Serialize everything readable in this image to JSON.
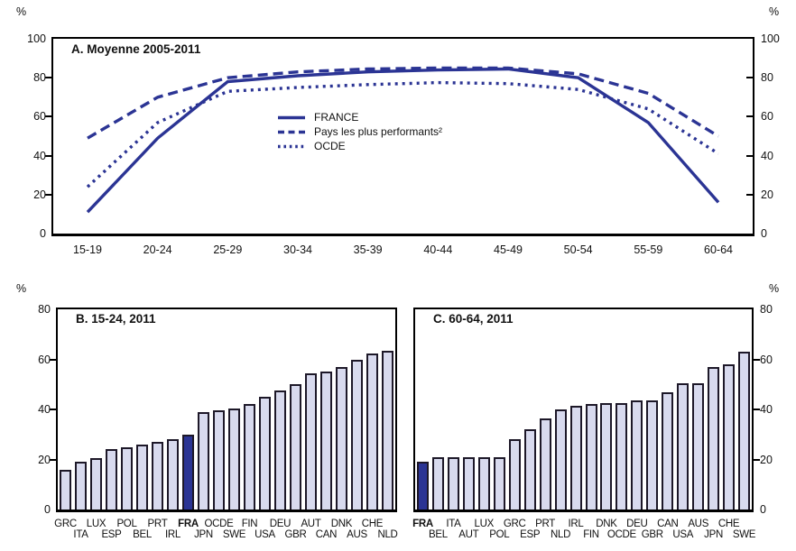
{
  "colors": {
    "accent": "#2b3494",
    "bar_fill": "#d8daee",
    "bar_border": "#1d1828",
    "axis": "#000000",
    "background": "#ffffff"
  },
  "chart_data": [
    {
      "type": "line",
      "title": "A. Moyenne 2005-2011",
      "unit": "%",
      "categories": [
        "15-19",
        "20-24",
        "25-29",
        "30-34",
        "35-39",
        "40-44",
        "45-49",
        "50-54",
        "55-59",
        "60-64"
      ],
      "series": [
        {
          "name": "FRANCE",
          "style": "solid",
          "values": [
            11,
            49,
            78,
            81,
            83,
            84,
            84.5,
            80,
            57,
            16
          ]
        },
        {
          "name": "Pays les plus performants²",
          "style": "dashed",
          "values": [
            49,
            70,
            80,
            83,
            84.5,
            85,
            85,
            82,
            72,
            50
          ]
        },
        {
          "name": "OCDE",
          "style": "dotted",
          "values": [
            24,
            57,
            73,
            75,
            76.5,
            77.5,
            77,
            74,
            64,
            41
          ]
        }
      ],
      "ylim": [
        0,
        100
      ],
      "yticks": [
        0,
        20,
        40,
        60,
        80,
        100
      ],
      "legend_position": "center",
      "grid": false
    },
    {
      "type": "bar",
      "title": "B. 15-24, 2011",
      "unit": "%",
      "categories": [
        "GRC",
        "ITA",
        "LUX",
        "ESP",
        "POL",
        "BEL",
        "PRT",
        "IRL",
        "FRA",
        "JPN",
        "OCDE",
        "SWE",
        "FIN",
        "USA",
        "DEU",
        "GBR",
        "AUT",
        "CAN",
        "DNK",
        "AUS",
        "CHE",
        "NLD"
      ],
      "values": [
        16,
        19,
        20.5,
        24,
        25,
        26,
        27,
        28,
        30,
        39,
        39.5,
        40.5,
        42,
        45,
        47.5,
        50,
        54.5,
        55,
        57,
        60,
        62.5,
        63.5
      ],
      "highlight": "FRA",
      "ylim": [
        0,
        80
      ],
      "yticks": [
        0,
        20,
        40,
        60,
        80
      ],
      "grid": false
    },
    {
      "type": "bar",
      "title": "C. 60-64, 2011",
      "unit": "%",
      "categories": [
        "FRA",
        "BEL",
        "ITA",
        "AUT",
        "LUX",
        "POL",
        "GRC",
        "ESP",
        "PRT",
        "NLD",
        "IRL",
        "FIN",
        "DNK",
        "OCDE",
        "DEU",
        "GBR",
        "CAN",
        "USA",
        "AUS",
        "JPN",
        "CHE",
        "SWE"
      ],
      "values": [
        19,
        21,
        21,
        21,
        21,
        21,
        28,
        32,
        36.5,
        40,
        41.5,
        42,
        42.5,
        42.5,
        43.5,
        43.5,
        47,
        50.5,
        50.5,
        57,
        58,
        63
      ],
      "highlight": "FRA",
      "ylim": [
        0,
        80
      ],
      "yticks": [
        0,
        20,
        40,
        60,
        80
      ],
      "grid": false
    }
  ]
}
